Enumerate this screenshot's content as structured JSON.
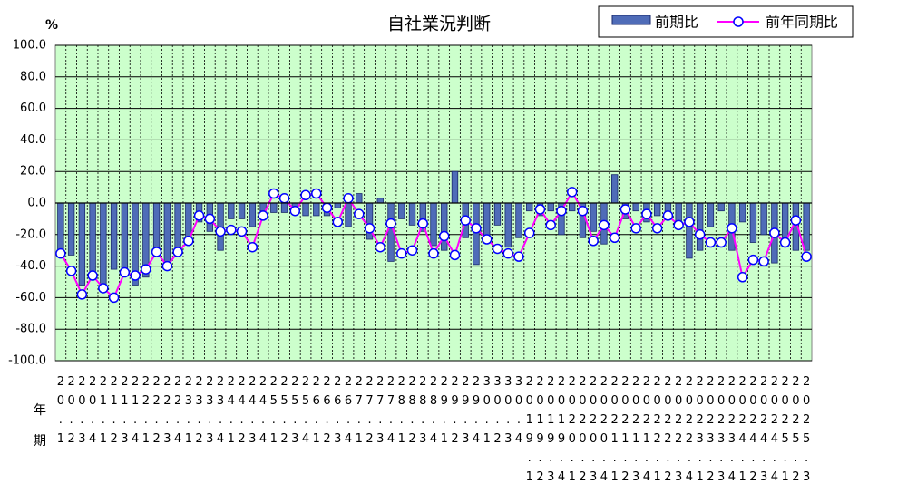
{
  "chart_data": {
    "type": "bar",
    "title": "自社業況判断",
    "y_label": "%",
    "year_label": "年",
    "period_label": "期",
    "categories": [
      "20.1",
      "20.2",
      "20.3",
      "20.4",
      "21.1",
      "21.2",
      "21.3",
      "21.4",
      "22.1",
      "22.2",
      "22.3",
      "22.4",
      "23.1",
      "23.2",
      "23.3",
      "23.4",
      "24.1",
      "24.2",
      "24.3",
      "24.4",
      "25.1",
      "25.2",
      "25.3",
      "25.4",
      "26.1",
      "26.2",
      "26.3",
      "26.4",
      "27.1",
      "27.2",
      "27.3",
      "27.4",
      "28.1",
      "28.2",
      "28.3",
      "28.4",
      "29.1",
      "29.2",
      "29.3",
      "29.4",
      "30.1",
      "30.2",
      "30.3",
      "30.4",
      "2019.1",
      "2019.2",
      "2019.3",
      "2019.4",
      "2020.1",
      "2020.2",
      "2020.3",
      "2020.4",
      "2021.1",
      "2021.2",
      "2021.3",
      "2021.4",
      "2022.1",
      "2022.2",
      "2022.3",
      "2022.4",
      "2023.1",
      "2023.2",
      "2023.3",
      "2023.4",
      "2024.1",
      "2024.2",
      "2024.3",
      "2024.4",
      "2025.1",
      "2025.2",
      "2025.3"
    ],
    "series": [
      {
        "name": "前期比",
        "type": "bar",
        "color": "#4f6cb8",
        "values": [
          -32,
          -33,
          -52,
          -48,
          -52,
          -42,
          -45,
          -52,
          -47,
          -32,
          -38,
          -33,
          -25,
          -12,
          -18,
          -30,
          -10,
          -10,
          -15,
          -5,
          -6,
          -6,
          -3,
          -8,
          -8,
          -8,
          -3,
          -15,
          6,
          -23,
          3,
          -37,
          -10,
          -14,
          -18,
          -27,
          -30,
          20,
          -22,
          -39,
          -23,
          -14,
          -28,
          -22,
          -5,
          -8,
          -5,
          -20,
          -5,
          -22,
          -18,
          -26,
          18,
          -10,
          -5,
          -12,
          -8,
          -10,
          -15,
          -35,
          -30,
          -15,
          -5,
          -30,
          -12,
          -25,
          -20,
          -38,
          -22,
          -30,
          -30
        ]
      },
      {
        "name": "前年同期比",
        "type": "line",
        "color": "#ff00ff",
        "values": [
          -32,
          -43,
          -58,
          -46,
          -54,
          -60,
          -44,
          -46,
          -42,
          -31,
          -40,
          -31,
          -24,
          -8,
          -10,
          -18,
          -17,
          -18,
          -28,
          -8,
          6,
          3,
          -5,
          5,
          6,
          -3,
          -12,
          3,
          -7,
          -16,
          -28,
          -13,
          -32,
          -30,
          -13,
          -32,
          -21,
          -33,
          -11,
          -16,
          -23,
          -29,
          -32,
          -34,
          -19,
          -4,
          -14,
          -5,
          7,
          -5,
          -24,
          -14,
          -22,
          -4,
          -16,
          -7,
          -16,
          -8,
          -14,
          -12,
          -20,
          -25,
          -25,
          -16,
          -47,
          -36,
          -37,
          -19,
          -25,
          -11,
          -34
        ]
      }
    ],
    "ylim": [
      -100,
      100
    ],
    "yticks": [
      {
        "value": -100,
        "label": "-100.0"
      },
      {
        "value": -80,
        "label": "-80.0"
      },
      {
        "value": -60,
        "label": "-60.0"
      },
      {
        "value": -40,
        "label": "-40.0"
      },
      {
        "value": -20,
        "label": "-20.0"
      },
      {
        "value": 0,
        "label": "0.0"
      },
      {
        "value": 20,
        "label": "20.0"
      },
      {
        "value": 40,
        "label": "40.0"
      },
      {
        "value": 60,
        "label": "60.0"
      },
      {
        "value": 80,
        "label": "80.0"
      },
      {
        "value": 100,
        "label": "100.0"
      }
    ],
    "grid": true,
    "legend": "top-right",
    "plot_background": "#ccffcc"
  }
}
